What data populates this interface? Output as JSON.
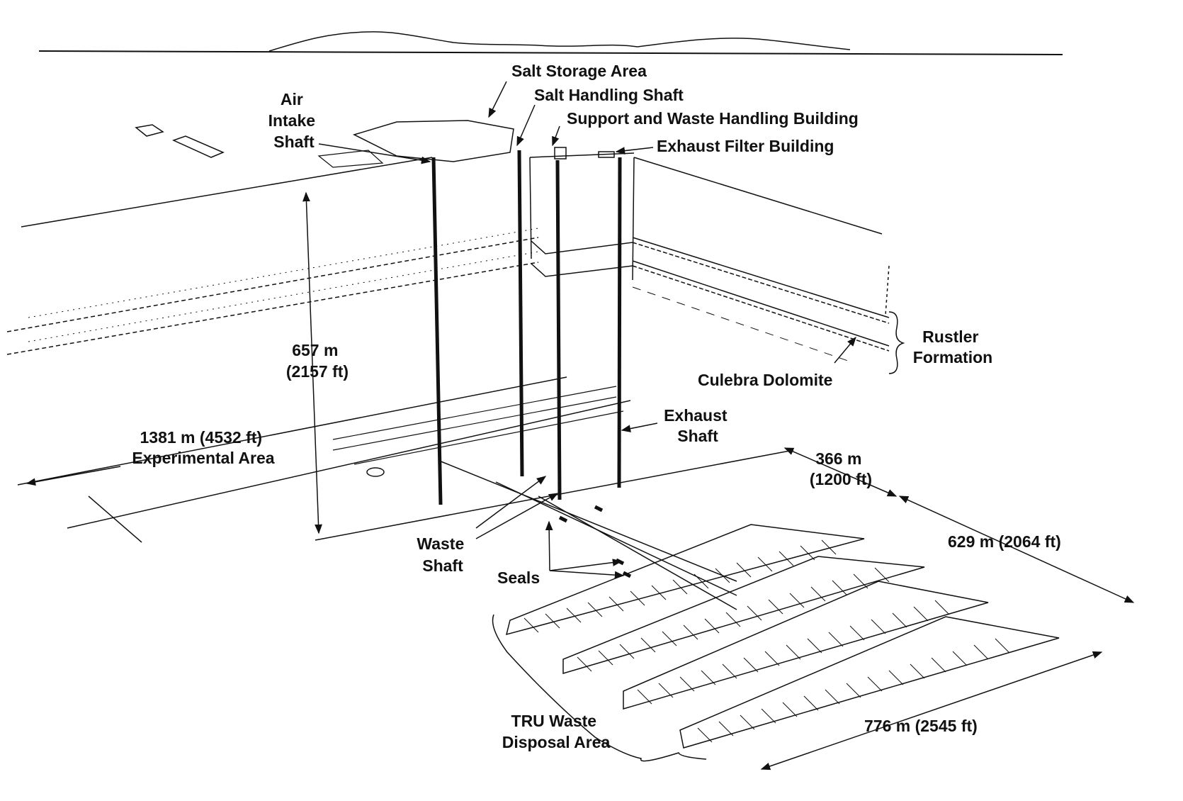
{
  "labels": {
    "salt_storage_area": "Salt Storage Area",
    "salt_handling_shaft": "Salt Handling Shaft",
    "support_building": "Support and Waste Handling Building",
    "exhaust_filter_building": "Exhaust Filter Building",
    "air_intake_shaft": [
      "Air",
      "Intake",
      "Shaft"
    ],
    "rustler_formation": [
      "Rustler",
      "Formation"
    ],
    "culebra_dolomite": "Culebra Dolomite",
    "depth": [
      "657 m",
      "(2157 ft)"
    ],
    "experimental_area": [
      "1381 m (4532 ft)",
      "Experimental Area"
    ],
    "exhaust_shaft": [
      "Exhaust",
      "Shaft"
    ],
    "width_366": [
      "366 m",
      "(1200 ft)"
    ],
    "width_629": "629 m (2064 ft)",
    "waste_shaft": [
      "Waste",
      "Shaft"
    ],
    "seals": "Seals",
    "tru_waste_disposal_area": [
      "TRU Waste",
      "Disposal Area"
    ],
    "length_776": "776 m (2545 ft)"
  },
  "colors": {
    "ink": "#111111",
    "background": "#ffffff"
  }
}
